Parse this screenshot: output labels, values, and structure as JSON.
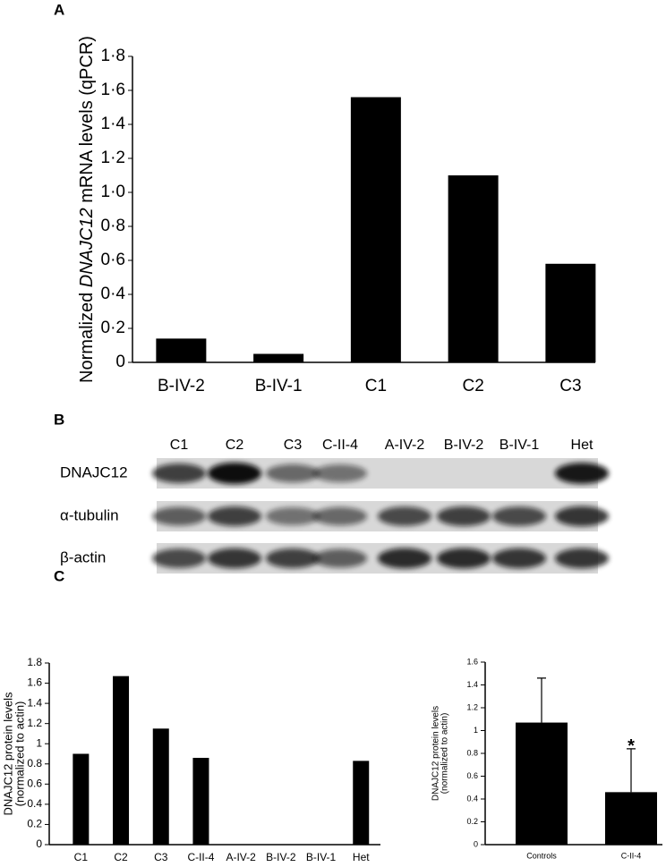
{
  "chart_data": [
    {
      "type": "bar",
      "panel_label": "A",
      "ylabel": {
        "before": "Normalized ",
        "italic": "DNAJC12",
        "after": " mRNA levels (qPCR)"
      },
      "categories": [
        "B-IV-2",
        "B-IV-1",
        "C1",
        "C2",
        "C3"
      ],
      "values": [
        0.14,
        0.05,
        1.56,
        1.1,
        0.58
      ],
      "color": "#000000",
      "ylim": [
        0,
        1.8
      ],
      "yticks": [
        0,
        {
          "value": 0.2,
          "label": "0·2"
        },
        {
          "value": 0.4,
          "label": "0·4"
        },
        {
          "value": 0.6,
          "label": "0·6"
        },
        {
          "value": 0.8,
          "label": "0·8"
        },
        {
          "value": 1.0,
          "label": "1·0"
        },
        {
          "value": 1.2,
          "label": "1·2"
        },
        {
          "value": 1.4,
          "label": "1·4"
        },
        {
          "value": 1.6,
          "label": "1·6"
        },
        {
          "value": 1.8,
          "label": "1·8"
        }
      ]
    },
    {
      "type": "bar",
      "panel_label": "C",
      "ylabel_lines": [
        "DNAJC12 protein levels",
        "(normalized to actin)"
      ],
      "categories": [
        "C1",
        "C2",
        "C3",
        "C-II-4",
        "A-IV-2",
        "B-IV-2",
        "B-IV-1",
        "Het"
      ],
      "values": [
        0.9,
        1.67,
        1.15,
        0.86,
        0,
        0,
        0,
        0.83
      ],
      "color": "#000000",
      "ylim": [
        0,
        1.8
      ],
      "yticks": [
        0,
        0.2,
        0.4,
        0.6,
        0.8,
        1,
        1.2,
        1.4,
        1.6,
        1.8
      ]
    },
    {
      "type": "bar",
      "ylabel_lines": [
        "DNAJC12 protein levels",
        "(normalized to actin)"
      ],
      "categories": [
        "Controls",
        "C-II-4"
      ],
      "values": [
        1.07,
        0.46
      ],
      "errors": [
        0.39,
        0.38
      ],
      "annotation": "*",
      "color": "#000000",
      "ylim": [
        0,
        1.6
      ],
      "yticks": [
        0,
        0.2,
        0.4,
        0.6,
        0.8,
        1,
        1.2,
        1.4,
        1.6
      ]
    }
  ],
  "blot": {
    "panel_label": "B",
    "lanes": [
      "C1",
      "C2",
      "C3",
      "C-II-4",
      "A-IV-2",
      "B-IV-2",
      "B-IV-1",
      "Het"
    ],
    "rows": [
      "DNAJC12",
      "α-tubulin",
      "β-actin"
    ]
  }
}
